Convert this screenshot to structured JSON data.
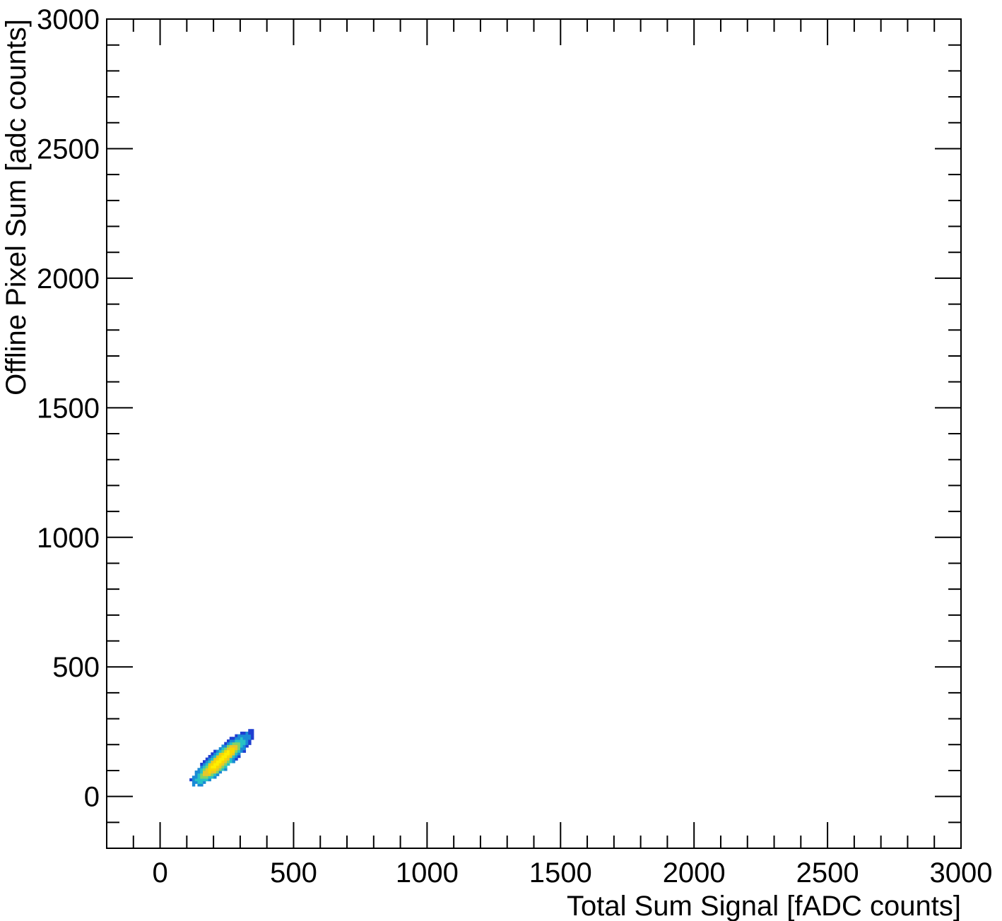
{
  "chart_data": {
    "type": "heatmap",
    "title": "",
    "xlabel": "Total Sum Signal [fADC counts]",
    "ylabel": "Offline Pixel Sum [adc counts]",
    "xlim": [
      -200,
      3000
    ],
    "ylim": [
      -200,
      3000
    ],
    "x_ticks": [
      0,
      500,
      1000,
      1500,
      2000,
      2500,
      3000
    ],
    "y_ticks": [
      0,
      500,
      1000,
      1500,
      2000,
      2500,
      3000
    ],
    "x_tick_labels": [
      "0",
      "500",
      "1000",
      "1500",
      "2000",
      "2500",
      "3000"
    ],
    "y_tick_labels": [
      "0",
      "500",
      "1000",
      "1500",
      "2000",
      "2500",
      "3000"
    ],
    "minor_tick_step": 100,
    "grid": false,
    "colormap": [
      "#1f3fd1",
      "#1a8ad6",
      "#28c2c4",
      "#7fd36a",
      "#e7c72a",
      "#f8d800",
      "#ffef00"
    ],
    "density_blob": {
      "center": [
        235,
        150
      ],
      "major_axis_direction": [
        0.74,
        0.67
      ],
      "sigma_major": 62,
      "sigma_minor": 16,
      "x_extent": [
        60,
        410
      ],
      "y_extent": [
        -40,
        340
      ],
      "peak_location": [
        200,
        110
      ]
    }
  }
}
